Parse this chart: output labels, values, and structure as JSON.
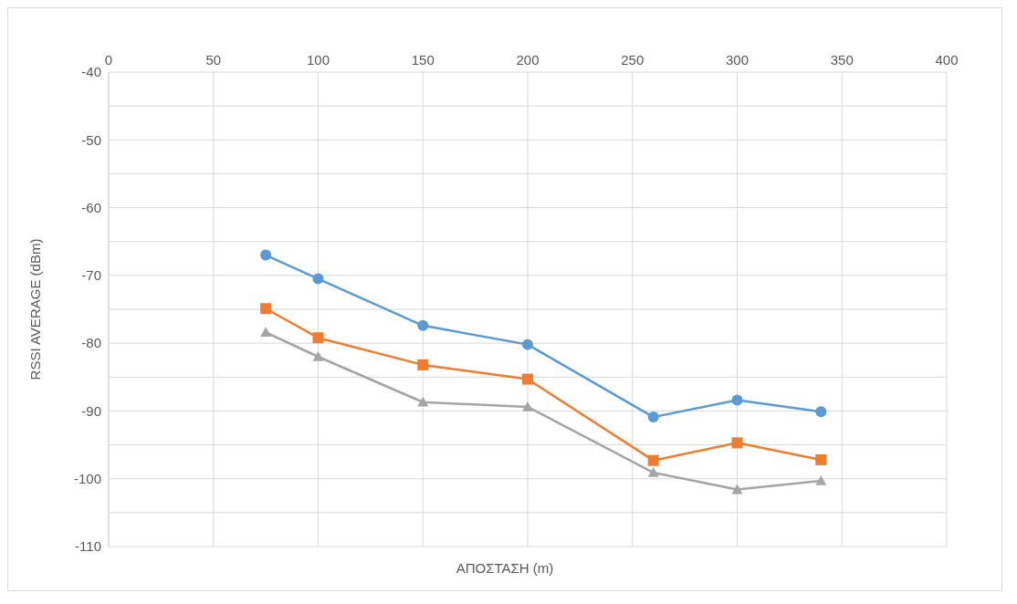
{
  "chart_data": {
    "type": "line",
    "xlabel": "ΑΠΟΣΤΑΣΗ (m)",
    "ylabel": "RSSI AVERAGE (dBm)",
    "x": [
      75,
      100,
      150,
      200,
      260,
      300,
      340
    ],
    "series": [
      {
        "color": "#5b9bd5",
        "marker": "circle",
        "values": [
          -67,
          -70.5,
          -77.4,
          -80.2,
          -90.9,
          -88.4,
          -90.1
        ]
      },
      {
        "color": "#ed7d31",
        "marker": "square",
        "values": [
          -74.9,
          -79.2,
          -83.2,
          -85.3,
          -97.3,
          -94.7,
          -97.2
        ]
      },
      {
        "color": "#a5a5a5",
        "marker": "triangle",
        "values": [
          -78.4,
          -82,
          -88.7,
          -89.4,
          -99.1,
          -101.6,
          -100.3
        ]
      }
    ],
    "xlim": [
      0,
      400
    ],
    "xticks": [
      0,
      50,
      100,
      150,
      200,
      250,
      300,
      350,
      400
    ],
    "ylim": [
      -110,
      -40
    ],
    "yticks": [
      -40,
      {
        "value": -45,
        "label": null
      },
      -50,
      {
        "value": -55,
        "label": null
      },
      -60,
      {
        "value": -65,
        "label": null
      },
      -70,
      {
        "value": -75,
        "label": null
      },
      -80,
      {
        "value": -85,
        "label": null
      },
      -90,
      {
        "value": -95,
        "label": null
      },
      -100,
      {
        "value": -105,
        "label": null
      },
      -110
    ],
    "grid": true,
    "legend": false
  }
}
